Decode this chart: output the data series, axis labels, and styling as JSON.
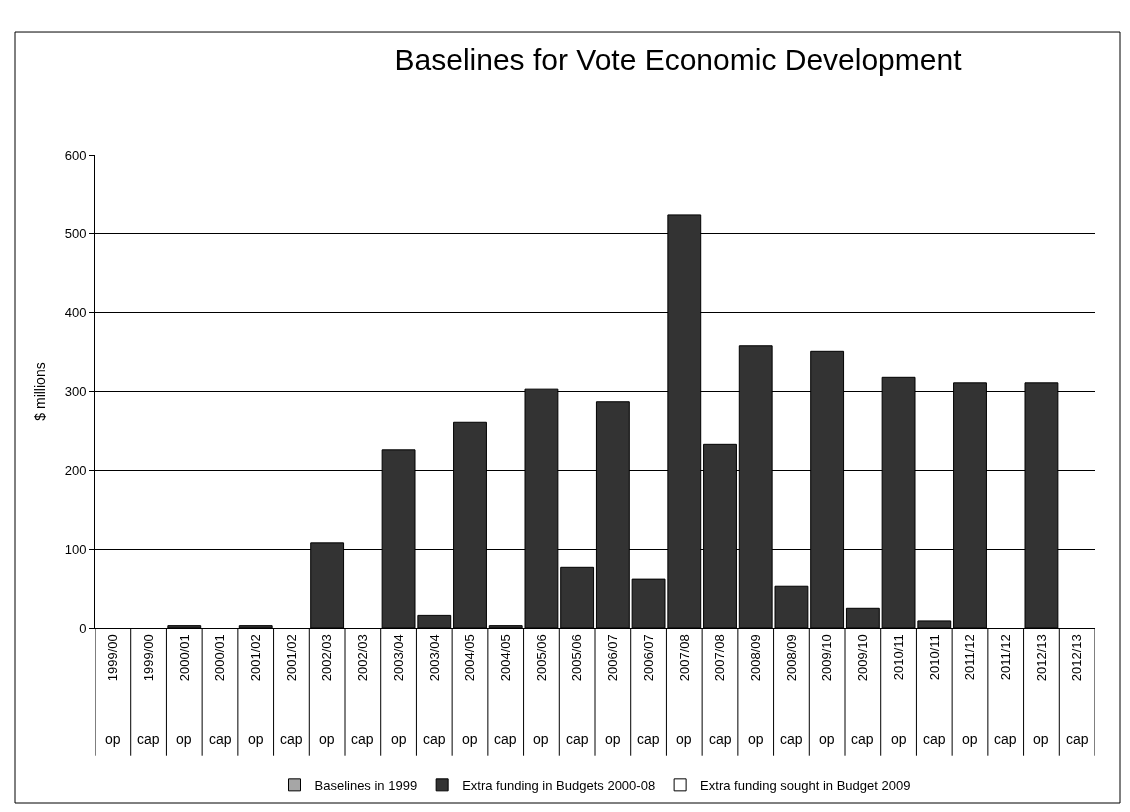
{
  "chart_data": {
    "type": "bar",
    "title": "Baselines for Vote Economic Development",
    "ylabel": "$ millions",
    "categories": [
      "1999/00 op",
      "1999/00 cap",
      "2000/01 op",
      "2000/01 cap",
      "2001/02 op",
      "2001/02 cap",
      "2002/03 op",
      "2002/03 cap",
      "2003/04 op",
      "2003/04 cap",
      "2004/05 op",
      "2004/05 cap",
      "2005/06 op",
      "2005/06 cap",
      "2006/07 op",
      "2006/07 cap",
      "2007/08 op",
      "2007/08 cap",
      "2008/09 op",
      "2008/09 cap",
      "2009/10 op",
      "2009/10 cap",
      "2010/11 op",
      "2010/11 cap",
      "2011/12 op",
      "2011/12 cap",
      "2012/13 op",
      "2012/13 cap"
    ],
    "series": [
      {
        "name": "Baselines in 1999",
        "color": "#a6a6a6",
        "values": [
          null,
          null,
          null,
          null,
          null,
          null,
          null,
          null,
          null,
          null,
          null,
          null,
          null,
          null,
          null,
          null,
          null,
          null,
          null,
          null,
          null,
          null,
          null,
          null,
          null,
          null,
          null,
          null
        ]
      },
      {
        "name": "Extra funding in Budgets 2000-08",
        "color": "#333333",
        "values": [
          null,
          null,
          3,
          null,
          3,
          null,
          108,
          null,
          226,
          16,
          261,
          3,
          303,
          77,
          287,
          62,
          524,
          233,
          358,
          53,
          351,
          25,
          318,
          9,
          311,
          null,
          311,
          null
        ]
      },
      {
        "name": "Extra funding sought in Budget 2009",
        "color": "#ffffff",
        "values": [
          null,
          null,
          null,
          null,
          null,
          null,
          null,
          null,
          null,
          null,
          null,
          null,
          null,
          null,
          null,
          null,
          null,
          null,
          null,
          null,
          null,
          null,
          null,
          null,
          null,
          null,
          null,
          null
        ]
      }
    ],
    "ylim": [
      0,
      600
    ],
    "yticks": [
      0,
      100,
      200,
      300,
      400,
      500,
      600
    ],
    "grid": "y",
    "legend": "bottom"
  }
}
